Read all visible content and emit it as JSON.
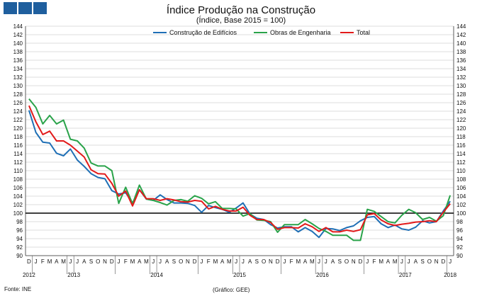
{
  "title": "Índice Produção na Construção",
  "subtitle": "(Índice, Base 2015 = 100)",
  "source": "Fonte: INE",
  "credit": "(Gráfico: GEE)",
  "colors": {
    "logo": "#1f5f9e",
    "grid": "#d3d3d3",
    "reference_line": "#000000"
  },
  "chart_data": {
    "type": "line",
    "title": "Índice Produção na Construção",
    "subtitle": "(Índice, Base 2015 = 100)",
    "xlabel": "",
    "ylabel": "",
    "ylim": [
      90,
      144
    ],
    "ytick_step": 2,
    "yticks_both_sides": true,
    "grid": "horizontal",
    "legend_position": "top",
    "reference_line": 100,
    "month_labels": [
      "D",
      "J",
      "F",
      "M",
      "A",
      "M",
      "J",
      "J",
      "A",
      "S",
      "O",
      "N",
      "D",
      "J",
      "F",
      "M",
      "A",
      "M",
      "J",
      "J",
      "A",
      "S",
      "O",
      "N",
      "D",
      "J",
      "F",
      "M",
      "A",
      "M",
      "J",
      "J",
      "A",
      "S",
      "O",
      "N",
      "D",
      "J",
      "F",
      "M",
      "A",
      "M",
      "J",
      "J",
      "A",
      "S",
      "O",
      "N",
      "D",
      "J",
      "F",
      "M",
      "A",
      "M",
      "J",
      "J",
      "A",
      "S",
      "O",
      "N",
      "D",
      "J"
    ],
    "year_labels": [
      {
        "label": "2012",
        "month_index": 0
      },
      {
        "label": "2013",
        "month_index": 6.5
      },
      {
        "label": "2014",
        "month_index": 18.5
      },
      {
        "label": "2015",
        "month_index": 30.5
      },
      {
        "label": "2016",
        "month_index": 42.5
      },
      {
        "label": "2017",
        "month_index": 54.5
      },
      {
        "label": "2018",
        "month_index": 61
      }
    ],
    "series": [
      {
        "name": "Construção de Edifícios",
        "color": "#1f6fb5",
        "values": [
          124.2,
          119.0,
          116.7,
          116.5,
          114.1,
          113.5,
          115.1,
          112.5,
          111.0,
          109.3,
          108.4,
          108.1,
          105.3,
          104.5,
          104.8,
          102.4,
          105.5,
          103.3,
          103.0,
          104.3,
          103.2,
          102.4,
          102.4,
          102.3,
          101.8,
          100.2,
          101.8,
          101.3,
          100.9,
          100.2,
          101.2,
          102.4,
          99.8,
          98.8,
          98.5,
          97.3,
          96.5,
          96.8,
          96.8,
          95.6,
          96.6,
          95.7,
          94.3,
          96.4,
          96.3,
          95.9,
          96.6,
          97.0,
          98.2,
          99.0,
          99.2,
          97.5,
          96.6,
          97.2,
          96.3,
          96.0,
          96.7,
          98.2,
          97.7,
          98.0,
          100.5,
          102.8
        ]
      },
      {
        "name": "Obras de Engenharia",
        "color": "#2aa34a",
        "values": [
          126.9,
          124.9,
          121.0,
          123.0,
          121.0,
          121.9,
          117.4,
          117.0,
          115.3,
          111.8,
          111.1,
          111.1,
          110.0,
          102.3,
          106.1,
          102.2,
          106.6,
          103.3,
          103.0,
          102.5,
          101.9,
          103.0,
          103.2,
          102.8,
          104.1,
          103.5,
          102.2,
          102.7,
          101.1,
          101.1,
          101.0,
          99.3,
          99.9,
          98.4,
          98.3,
          98.0,
          95.5,
          97.3,
          97.3,
          97.3,
          98.5,
          97.5,
          96.4,
          95.7,
          94.8,
          94.8,
          94.8,
          93.6,
          93.6,
          100.9,
          100.4,
          99.2,
          98.0,
          97.7,
          99.5,
          100.9,
          100.1,
          98.5,
          99.0,
          98.1,
          99.4,
          104.2
        ]
      },
      {
        "name": "Total",
        "color": "#e21a1a",
        "values": [
          125.3,
          121.5,
          118.5,
          119.3,
          117.0,
          117.0,
          116.0,
          114.6,
          113.2,
          110.2,
          109.3,
          109.2,
          107.0,
          104.0,
          105.2,
          101.7,
          105.5,
          103.4,
          103.4,
          103.0,
          103.4,
          103.1,
          102.7,
          102.6,
          103.0,
          102.8,
          101.0,
          101.6,
          100.9,
          100.5,
          100.5,
          101.4,
          99.5,
          98.5,
          98.5,
          97.8,
          96.2,
          96.6,
          96.6,
          96.5,
          97.5,
          96.8,
          95.7,
          96.6,
          95.6,
          95.6,
          96.0,
          95.7,
          96.1,
          99.6,
          99.9,
          98.4,
          97.5,
          97.1,
          97.4,
          97.6,
          97.9,
          98.0,
          98.2,
          98.0,
          100.2,
          102.2
        ]
      }
    ]
  }
}
